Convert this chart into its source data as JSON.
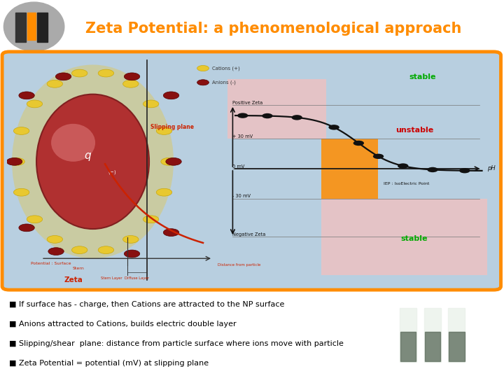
{
  "title": "Zeta Potential: a phenomenological approach",
  "title_color": "#FF8C00",
  "title_bg": "#1a1a1a",
  "slide_bg": "#FFFFFF",
  "content_bg": "#b8cfe0",
  "content_border": "#FF8C00",
  "bottom_bar_color": "#FF8C00",
  "bullet_points": [
    "If surface has - charge, then Cations are attracted to the NP surface",
    "Anions attracted to Cations, builds electric double layer",
    "Slipping/shear  plane: distance from particle surface where ions move with particle",
    "Zeta Potential = potential (mV) at slipping plane"
  ],
  "bullet_color": "#000000",
  "stable_color": "#00AA00",
  "unstable_color": "#CC0000",
  "pink_region": "#f0c0c0",
  "orange_region": "#FF8C00",
  "curve_color": "#111111",
  "label_positive_zeta": "Positive Zeta",
  "label_30mv_pos": "+ 30 mV",
  "label_0mv": "0 mV",
  "label_30mv_neg": "- 30 mV",
  "label_negative_zeta": "Negative Zeta",
  "label_iep": "IEP : IsoElectric Point",
  "label_ph": "pH",
  "label_slipping": "Slipping plane",
  "label_potential_surface": "Potential : Surface",
  "label_stern": "Stern",
  "label_zeta": "Zeta",
  "label_stern_layer": "Stern Layer",
  "label_diffuse_layer": "Diffuse Layer",
  "label_distance": "Distance from particle",
  "label_cations": "Cations (+)",
  "label_anions": "Anions (-)"
}
